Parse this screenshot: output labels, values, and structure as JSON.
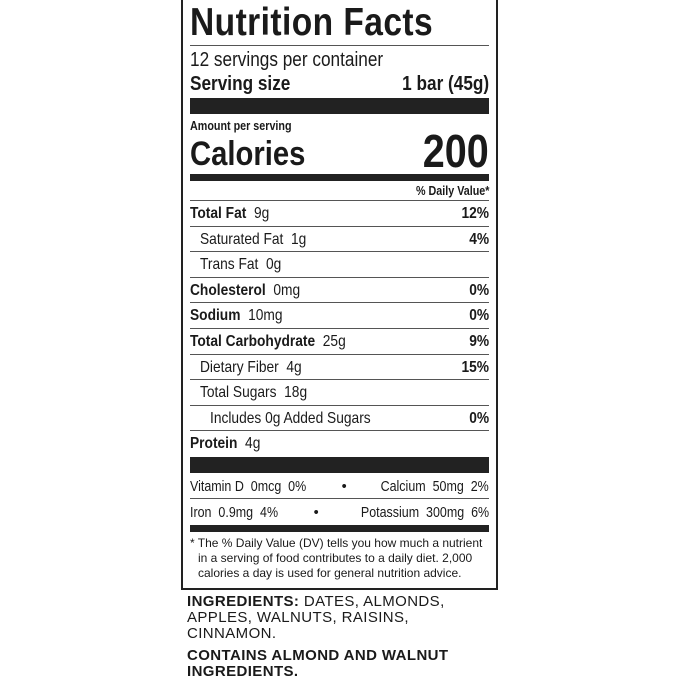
{
  "title": "Nutrition Facts",
  "servings_per_container": "12 servings per container",
  "serving_size": {
    "label": "Serving size",
    "value": "1 bar (45g)"
  },
  "amount_per_serving": "Amount per serving",
  "calories": {
    "label": "Calories",
    "value": "200"
  },
  "daily_value_header": "% Daily Value*",
  "nutrients": [
    {
      "name": "Total Fat",
      "amount": "9g",
      "dv": "12%"
    },
    {
      "name": "Saturated Fat",
      "amount": "1g",
      "dv": "4%"
    },
    {
      "name": "Trans Fat",
      "amount": "0g",
      "dv": ""
    },
    {
      "name": "Cholesterol",
      "amount": "0mg",
      "dv": "0%"
    },
    {
      "name": "Sodium",
      "amount": "10mg",
      "dv": "0%"
    },
    {
      "name": "Total Carbohydrate",
      "amount": "25g",
      "dv": "9%"
    },
    {
      "name": "Dietary Fiber",
      "amount": "4g",
      "dv": "15%"
    },
    {
      "name": "Total Sugars",
      "amount": "18g",
      "dv": ""
    },
    {
      "name": "Includes 0g Added Sugars",
      "amount": "",
      "dv": "0%"
    },
    {
      "name": "Protein",
      "amount": "4g",
      "dv": ""
    }
  ],
  "vitamins": [
    {
      "left": "Vitamin D  0mcg  0%",
      "right": "Calcium  50mg  2%"
    },
    {
      "left": "Iron  0.9mg  4%",
      "right": "Potassium  300mg  6%"
    }
  ],
  "separator": "•",
  "footnote": "* The % Daily Value (DV) tells you how much a nutrient in a serving of food contributes to a daily diet. 2,000 calories a day is used for general nutrition advice.",
  "ingredients": {
    "label": "INGREDIENTS:",
    "text": " DATES, ALMONDS, APPLES, WALNUTS, RAISINS, CINNAMON."
  },
  "allergens": "CONTAINS ALMOND AND WALNUT INGREDIENTS."
}
